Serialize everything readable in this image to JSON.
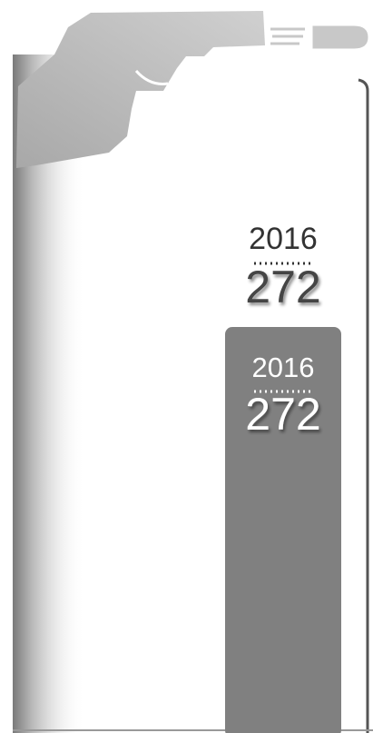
{
  "chart_data": {
    "type": "bar",
    "categories": [
      "2016"
    ],
    "values": [
      272
    ],
    "color": "#808080"
  }
}
